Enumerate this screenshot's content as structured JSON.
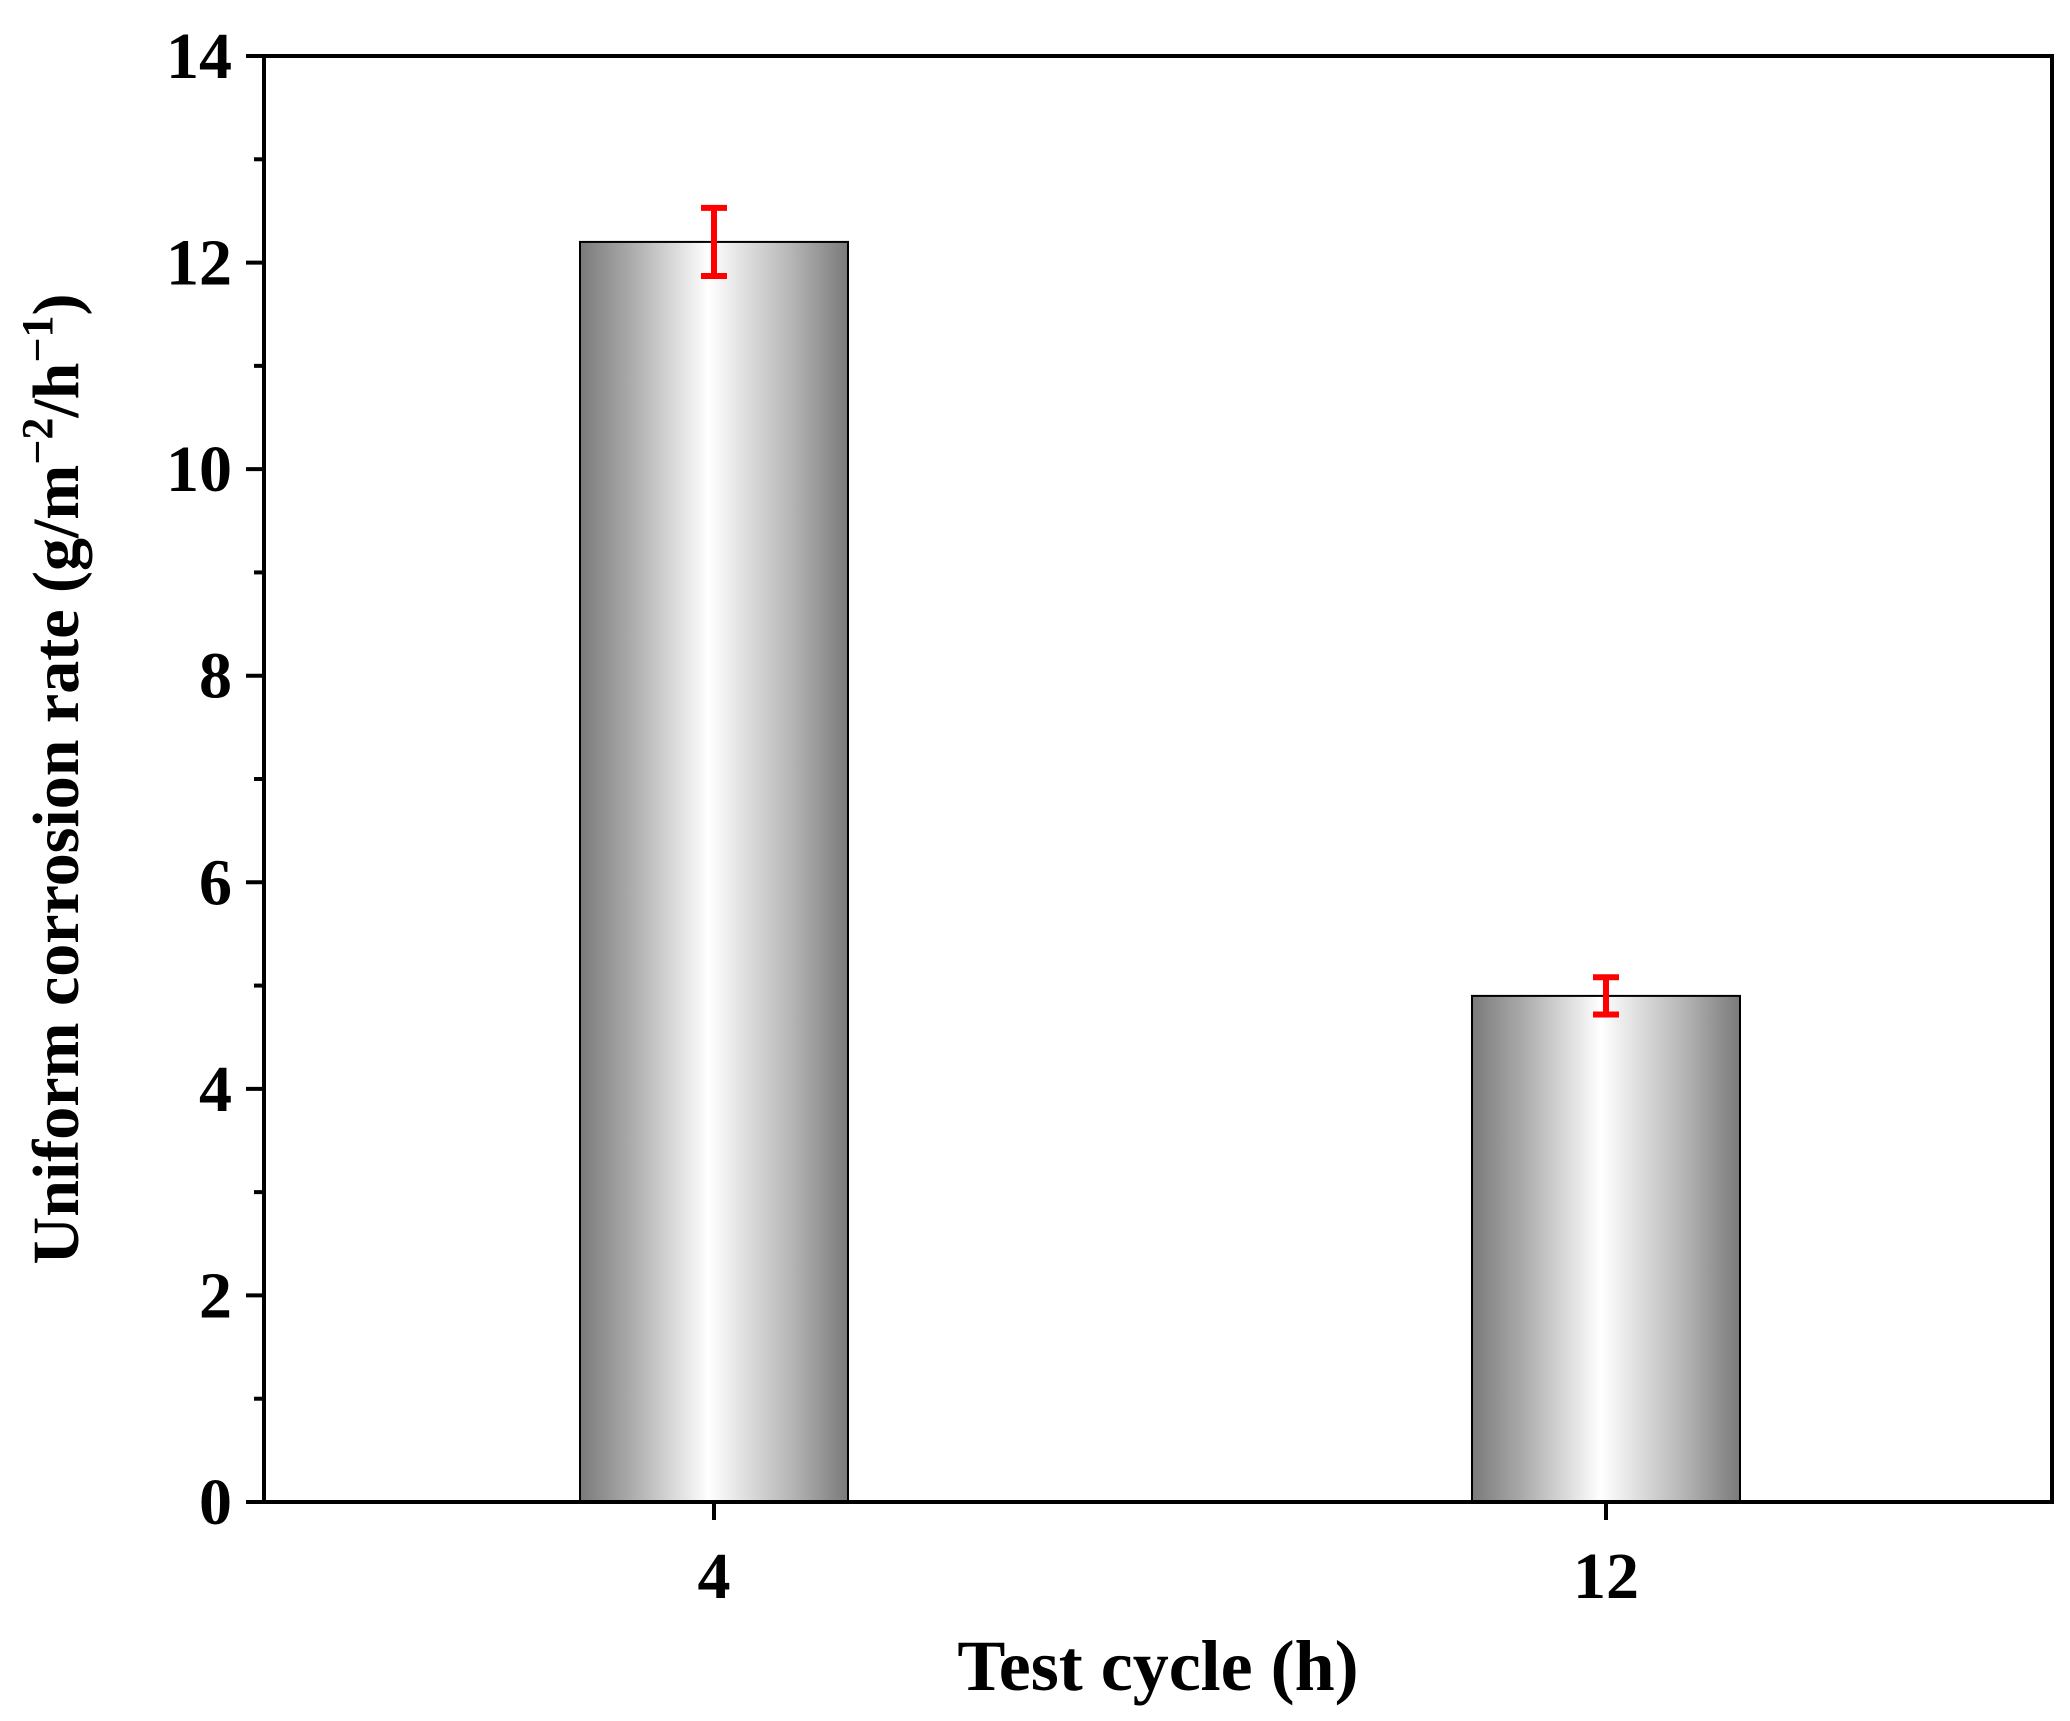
{
  "chart_data": {
    "type": "bar",
    "title": "",
    "categories": [
      "4",
      "12"
    ],
    "series": [
      {
        "name": "Uniform corrosion rate",
        "values": [
          12.2,
          4.9
        ],
        "errors": [
          0.33,
          0.18
        ]
      }
    ],
    "xlabel": "Test cycle (h)",
    "ylabel": {
      "prefix": "Uniform corrosion rate (g/m",
      "sup1": "−2",
      "mid": "/h",
      "sup2": "−1",
      "suffix": ")"
    },
    "ylim": [
      0,
      14
    ],
    "yticks": [
      "0",
      "2",
      "4",
      "6",
      "8",
      "10",
      "12",
      "14"
    ],
    "yminor_step": 1,
    "grid": false,
    "legend": "none",
    "colors": {
      "bar_edge": "#000000",
      "error_bar": "#ff0000",
      "axis": "#000000",
      "bar_dark": "#7a7a7a",
      "bar_light": "#ffffff"
    }
  }
}
